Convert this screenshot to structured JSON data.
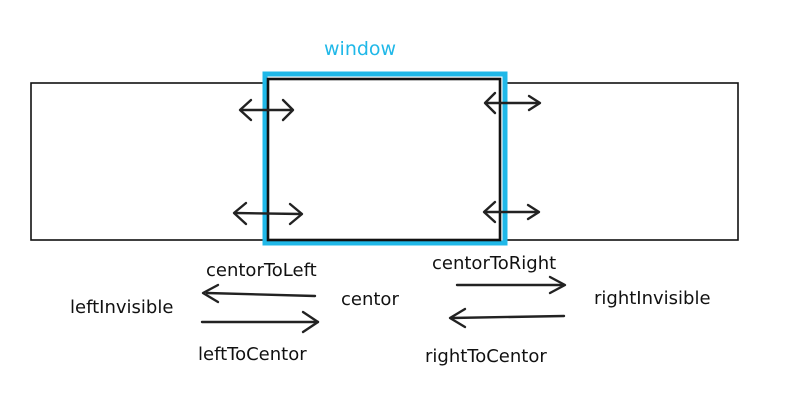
{
  "labels": {
    "window": "window",
    "centor_to_left": "centorToLeft",
    "centor_to_right": "centorToRight",
    "left_invisible": "leftInvisible",
    "centor": "centor",
    "right_invisible": "rightInvisible",
    "left_to_centor": "leftToCentor",
    "right_to_centor": "rightToCentor"
  },
  "colors": {
    "window_highlight": "#20b8e8",
    "stroke": "#111111"
  }
}
